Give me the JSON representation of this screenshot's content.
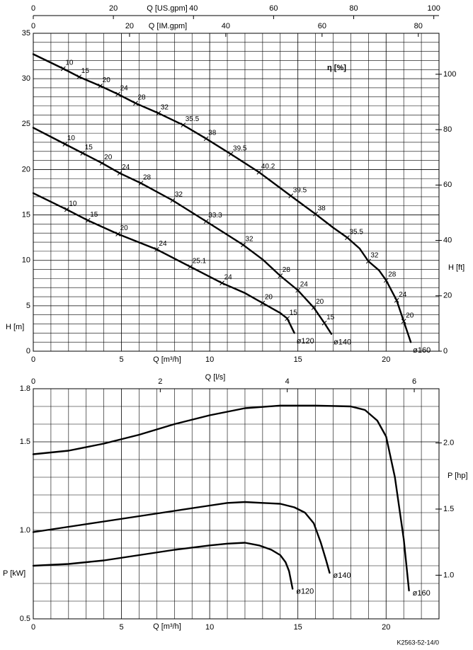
{
  "chart_data": [
    {
      "type": "line",
      "xlabel": "Q [m³/h]",
      "ylabel": "H [m]",
      "x2label": "Q [US.gpm]",
      "x3label": "Q [IM.gpm]",
      "y2label": "H [ft]",
      "eta_label": "η [%]",
      "xlim": [
        0,
        23
      ],
      "xticks": [
        0,
        5,
        10,
        15,
        20
      ],
      "ylim": [
        0,
        35
      ],
      "yticks": [
        0,
        5,
        10,
        15,
        20,
        25,
        30,
        35
      ],
      "x2lim": [
        0,
        101.3
      ],
      "x2ticks": [
        0,
        20,
        40,
        60,
        80,
        100
      ],
      "x3lim": [
        0,
        84.3
      ],
      "x3ticks": [
        0,
        20,
        40,
        60,
        80
      ],
      "y2lim": [
        0,
        114.8
      ],
      "y2ticks": [
        0,
        20,
        40,
        60,
        80,
        100
      ],
      "grid": true,
      "series": [
        {
          "name": "ø160",
          "color": "#000000",
          "x": [
            0,
            1.7,
            2.6,
            3.8,
            4.8,
            5.8,
            7.1,
            8.5,
            9.8,
            11.2,
            12.8,
            14.6,
            16.0,
            17.0,
            17.8,
            18.5,
            19.0,
            19.6,
            20.0,
            20.6,
            21.0,
            21.4
          ],
          "values": [
            32.7,
            31.1,
            30.2,
            29.2,
            28.3,
            27.3,
            26.2,
            24.9,
            23.4,
            21.7,
            19.7,
            17.1,
            15.1,
            13.6,
            12.5,
            11.3,
            9.9,
            8.9,
            7.8,
            5.6,
            3.3,
            1.0
          ],
          "eta_q": [
            1.7,
            2.6,
            3.8,
            4.8,
            5.8,
            7.1,
            8.5,
            9.8,
            11.2,
            12.8,
            14.6,
            16.0,
            17.8,
            19.0,
            20.0,
            20.6,
            21.0
          ],
          "eta_h": [
            31.1,
            30.2,
            29.2,
            28.3,
            27.3,
            26.2,
            24.9,
            23.4,
            21.7,
            19.7,
            17.1,
            15.1,
            12.5,
            9.9,
            7.8,
            5.6,
            3.3
          ],
          "eta": [
            10,
            15,
            20,
            24,
            28,
            32,
            35.5,
            38,
            39.5,
            40.2,
            39.5,
            38,
            35.5,
            32,
            28,
            24,
            20
          ]
        },
        {
          "name": "ø140",
          "color": "#000000",
          "x": [
            0,
            1.8,
            2.8,
            3.9,
            4.9,
            6.1,
            7.9,
            9.8,
            11.9,
            13.0,
            14.0,
            15.0,
            15.9,
            16.5,
            16.9
          ],
          "values": [
            24.6,
            22.8,
            21.8,
            20.7,
            19.6,
            18.5,
            16.6,
            14.3,
            11.7,
            10.1,
            8.3,
            6.7,
            4.8,
            3.1,
            1.9
          ],
          "eta_q": [
            1.8,
            2.8,
            3.9,
            4.9,
            6.1,
            7.9,
            9.8,
            11.9,
            14.0,
            15.0,
            15.9,
            16.5
          ],
          "eta_h": [
            22.8,
            21.8,
            20.7,
            19.6,
            18.5,
            16.6,
            14.3,
            11.7,
            8.3,
            6.7,
            4.8,
            3.1
          ],
          "eta": [
            10,
            15,
            20,
            24,
            28,
            32,
            33.3,
            32,
            28,
            24,
            20,
            15
          ]
        },
        {
          "name": "ø120",
          "color": "#000000",
          "x": [
            0,
            1.9,
            3.1,
            4.8,
            7.0,
            8.9,
            10.7,
            12.0,
            13.0,
            14.0,
            14.4,
            14.8
          ],
          "values": [
            17.4,
            15.6,
            14.4,
            12.9,
            11.2,
            9.3,
            7.5,
            6.4,
            5.3,
            4.2,
            3.6,
            2.0
          ],
          "eta_q": [
            1.9,
            3.1,
            4.8,
            7.0,
            8.9,
            10.7,
            13.0,
            14.4
          ],
          "eta_h": [
            15.6,
            14.4,
            12.9,
            11.2,
            9.3,
            7.5,
            5.3,
            3.6
          ],
          "eta": [
            10,
            15,
            20,
            24,
            25.1,
            24,
            20,
            15
          ]
        }
      ]
    },
    {
      "type": "line",
      "xlabel": "Q [m³/h]",
      "ylabel": "P [kW]",
      "x2label": "Q [l/s]",
      "y2label": "P [hp]",
      "xlim": [
        0,
        23
      ],
      "xticks": [
        0,
        5,
        10,
        15,
        20
      ],
      "ylim": [
        0.5,
        1.8
      ],
      "yticks": [
        0.5,
        {
          "value": 1,
          "label": "1.0"
        },
        1.5,
        1.8
      ],
      "x2lim": [
        0,
        6.39
      ],
      "x2ticks": [
        0,
        2,
        4,
        6
      ],
      "y2lim": [
        0.67,
        2.41
      ],
      "y2ticks": [
        {
          "value": 1,
          "label": "1.0"
        },
        1.5,
        {
          "value": 2,
          "label": "2.0"
        }
      ],
      "grid": true,
      "series": [
        {
          "name": "ø160",
          "color": "#000000",
          "x": [
            0,
            2,
            4,
            6,
            8,
            10,
            12,
            14,
            16,
            18,
            18.8,
            19.5,
            20,
            20.5,
            21,
            21.3
          ],
          "values": [
            1.43,
            1.45,
            1.49,
            1.54,
            1.6,
            1.65,
            1.69,
            1.705,
            1.705,
            1.7,
            1.68,
            1.62,
            1.53,
            1.3,
            0.95,
            0.66
          ]
        },
        {
          "name": "ø140",
          "color": "#000000",
          "x": [
            0,
            2,
            4,
            6,
            8,
            10,
            11,
            12,
            13,
            14,
            14.8,
            15.4,
            15.9,
            16.3,
            16.6,
            16.8
          ],
          "values": [
            0.99,
            1.02,
            1.05,
            1.08,
            1.11,
            1.14,
            1.155,
            1.16,
            1.155,
            1.15,
            1.13,
            1.1,
            1.04,
            0.93,
            0.83,
            0.76
          ]
        },
        {
          "name": "ø120",
          "color": "#000000",
          "x": [
            0,
            2,
            4,
            6,
            8,
            10,
            11,
            12,
            12.8,
            13.5,
            14,
            14.3,
            14.5,
            14.7
          ],
          "values": [
            0.8,
            0.81,
            0.83,
            0.86,
            0.89,
            0.915,
            0.925,
            0.93,
            0.915,
            0.89,
            0.86,
            0.82,
            0.77,
            0.67
          ]
        }
      ]
    }
  ],
  "footer": "K2563-52-14/0"
}
